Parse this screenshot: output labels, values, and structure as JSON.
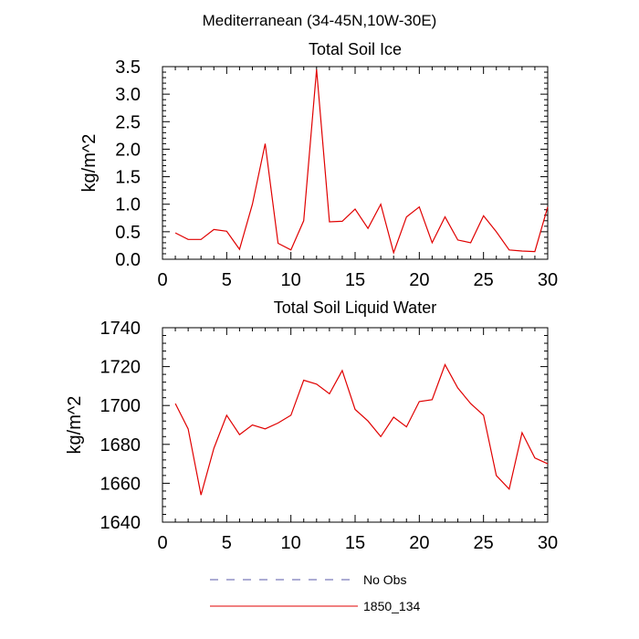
{
  "suptitle": "Mediterranean (34-45N,10W-30E)",
  "legend": {
    "position": "bottom-center",
    "entries": [
      {
        "label": "No Obs",
        "style": "dashed",
        "color": "#5a5aa8"
      },
      {
        "label": "1850_134",
        "style": "solid",
        "color": "#e00000"
      }
    ]
  },
  "chart_data": [
    {
      "type": "line",
      "title": "Total Soil Ice",
      "ylabel": "kg/m^2",
      "xlabel": "",
      "xlim": [
        0,
        30
      ],
      "ylim": [
        0,
        3.5
      ],
      "xticks": [
        0,
        5,
        10,
        15,
        20,
        25,
        30
      ],
      "xtick_labels": [
        "0",
        "5",
        "10",
        "15",
        "20",
        "25",
        "30"
      ],
      "yticks": [
        0,
        0.5,
        1.0,
        1.5,
        2.0,
        2.5,
        3.0,
        3.5
      ],
      "ytick_labels": [
        "0.0",
        "0.5",
        "1.0",
        "1.5",
        "2.0",
        "2.5",
        "3.0",
        "3.5"
      ],
      "series": [
        {
          "name": "1850_134",
          "color": "#e00000",
          "x": [
            1,
            2,
            3,
            4,
            5,
            6,
            7,
            8,
            9,
            10,
            11,
            12,
            13,
            14,
            15,
            16,
            17,
            18,
            19,
            20,
            21,
            22,
            23,
            24,
            25,
            26,
            27,
            28,
            29,
            30
          ],
          "y": [
            0.48,
            0.36,
            0.36,
            0.54,
            0.51,
            0.18,
            1.0,
            2.1,
            0.29,
            0.17,
            0.7,
            3.45,
            0.68,
            0.69,
            0.91,
            0.56,
            1.0,
            0.12,
            0.77,
            0.95,
            0.3,
            0.77,
            0.35,
            0.3,
            0.79,
            0.5,
            0.17,
            0.15,
            0.14,
            0.95
          ]
        }
      ]
    },
    {
      "type": "line",
      "title": "Total Soil Liquid Water",
      "ylabel": "kg/m^2",
      "xlabel": "",
      "xlim": [
        0,
        30
      ],
      "ylim": [
        1640,
        1740
      ],
      "xticks": [
        0,
        5,
        10,
        15,
        20,
        25,
        30
      ],
      "xtick_labels": [
        "0",
        "5",
        "10",
        "15",
        "20",
        "25",
        "30"
      ],
      "yticks": [
        1640,
        1660,
        1680,
        1700,
        1720,
        1740
      ],
      "ytick_labels": [
        "1640",
        "1660",
        "1680",
        "1700",
        "1720",
        "1740"
      ],
      "series": [
        {
          "name": "1850_134",
          "color": "#e00000",
          "x": [
            1,
            2,
            3,
            4,
            5,
            6,
            7,
            8,
            9,
            10,
            11,
            12,
            13,
            14,
            15,
            16,
            17,
            18,
            19,
            20,
            21,
            22,
            23,
            24,
            25,
            26,
            27,
            28,
            29,
            30
          ],
          "y": [
            1701,
            1688,
            1654,
            1678,
            1695,
            1685,
            1690,
            1688,
            1691,
            1695,
            1713,
            1711,
            1706,
            1718,
            1698,
            1692,
            1684,
            1694,
            1689,
            1702,
            1703,
            1721,
            1709,
            1701,
            1695,
            1664,
            1657,
            1686,
            1673,
            1670
          ]
        }
      ]
    }
  ]
}
